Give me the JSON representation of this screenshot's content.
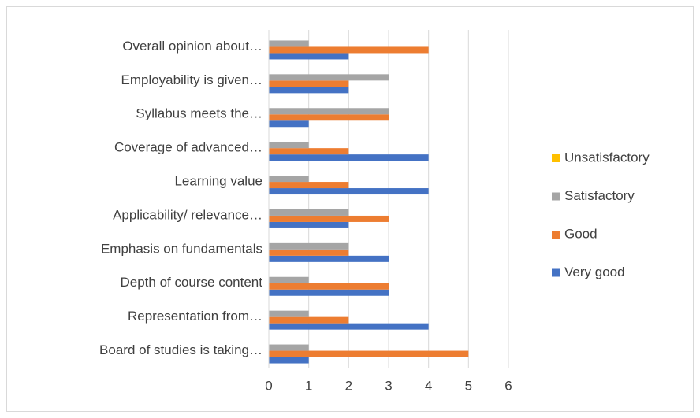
{
  "chart_data": {
    "type": "hbar",
    "categories": [
      "Board of studies is taking…",
      "Representation from…",
      "Depth of course content",
      "Emphasis on fundamentals",
      "Applicability/ relevance…",
      "Learning value",
      "Coverage of advanced…",
      "Syllabus meets the…",
      "Employability is given…",
      "Overall opinion about…"
    ],
    "series": [
      {
        "name": "Very good",
        "color": "#4472c4",
        "values": [
          1,
          4,
          3,
          3,
          2,
          4,
          4,
          1,
          2,
          2
        ]
      },
      {
        "name": "Good",
        "color": "#ed7d31",
        "values": [
          5,
          2,
          3,
          2,
          3,
          2,
          2,
          3,
          2,
          4
        ]
      },
      {
        "name": "Satisfactory",
        "color": "#a5a5a5",
        "values": [
          1,
          1,
          1,
          2,
          2,
          1,
          1,
          3,
          3,
          1
        ]
      },
      {
        "name": "Unsatisfactory",
        "color": "#ffc000",
        "values": [
          0,
          0,
          0,
          0,
          0,
          0,
          0,
          0,
          0,
          0
        ]
      }
    ],
    "xlim": [
      0,
      6
    ],
    "xticks": [
      0,
      1,
      2,
      3,
      4,
      5,
      6
    ],
    "grid": true,
    "legend": "right"
  }
}
